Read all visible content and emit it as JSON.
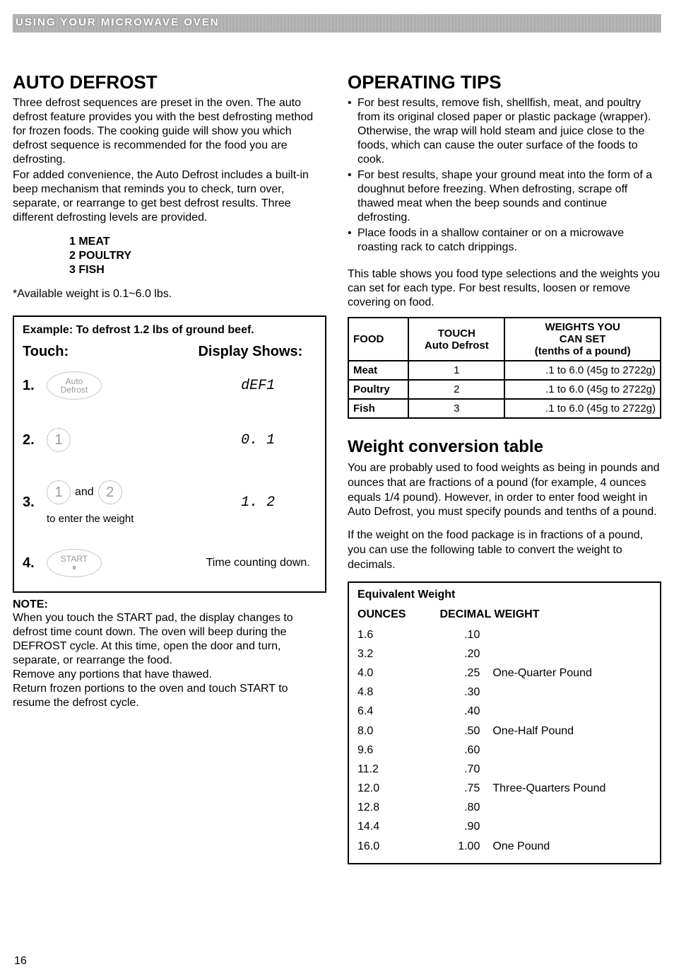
{
  "banner": "USING YOUR MICROWAVE OVEN",
  "left": {
    "h": "AUTO DEFROST",
    "p1": "Three defrost sequences are preset in the oven. The auto defrost feature provides you with the best defrosting method for frozen foods. The cooking guide will show you which defrost sequence is recommended for the food you are defrosting.",
    "p2": "For added convenience, the Auto Defrost includes a built-in beep mechanism that reminds you to check, turn over, separate, or rearrange to get best defrost results. Three different defrosting levels are provided.",
    "levels": [
      "1 MEAT",
      "2 POULTRY",
      "3 FISH"
    ],
    "avail": "*Available weight is 0.1~6.0 lbs.",
    "ex_title": "Example: To defrost 1.2 lbs of ground beef.",
    "ex_touch": "Touch:",
    "ex_disp": "Display Shows:",
    "steps": [
      {
        "n": "1.",
        "icon": "auto-defrost",
        "disp": "dEF1"
      },
      {
        "n": "2.",
        "icon": "key-1",
        "disp": "0. 1"
      },
      {
        "n": "3.",
        "icon": "key-1-2",
        "disp": "1. 2",
        "sub": "to enter the weight"
      },
      {
        "n": "4.",
        "icon": "start",
        "disp": "Time counting down."
      }
    ],
    "and": "and",
    "note_h": "NOTE:",
    "note": "When you touch the START pad, the display changes to defrost time count down. The oven will beep during the DEFROST cycle. At this time, open the door and turn, separate, or rearrange the food.\nRemove any portions that have thawed.\nReturn frozen portions to the oven and touch START to resume the defrost cycle."
  },
  "right": {
    "h1": "OPERATING TIPS",
    "tips": [
      "For best results, remove fish, shellfish, meat, and poultry from its original closed paper or plastic package (wrapper). Otherwise, the wrap will hold steam and juice close to the foods, which can cause the outer surface of the foods to cook.",
      "For best results, shape your ground meat into the form of a doughnut before freezing. When defrosting, scrape off thawed meat when the beep sounds and continue defrosting.",
      "Place foods in a shallow container or on a microwave roasting rack to catch drippings."
    ],
    "table_intro": "This table shows you food type selections and the weights you can set for each type. For best results, loosen or remove covering on food.",
    "food_head": [
      "FOOD",
      "TOUCH Auto Defrost",
      "WEIGHTS YOU CAN SET (tenths of a pound)"
    ],
    "food_rows": [
      [
        "Meat",
        "1",
        ".1 to 6.0 (45g to 2722g)"
      ],
      [
        "Poultry",
        "2",
        ".1 to 6.0 (45g to 2722g)"
      ],
      [
        "Fish",
        "3",
        ".1 to 6.0 (45g to 2722g)"
      ]
    ],
    "h2": "Weight conversion table",
    "wc_p1": "You are probably used to food weights as being in pounds and ounces that are fractions of a pound (for example, 4 ounces equals 1/4 pound). However, in order to enter food weight in Auto Defrost, you must specify pounds and tenths of a pound.",
    "wc_p2": "If the weight on the food package is in fractions of a pound, you can use the following table to convert the weight to decimals.",
    "eq_title": "Equivalent Weight",
    "eq_head": [
      "OUNCES",
      "DECIMAL WEIGHT"
    ],
    "eq_rows": [
      [
        "1.6",
        ".10",
        ""
      ],
      [
        "3.2",
        ".20",
        ""
      ],
      [
        "4.0",
        ".25",
        "One-Quarter Pound"
      ],
      [
        "4.8",
        ".30",
        ""
      ],
      [
        "6.4",
        ".40",
        ""
      ],
      [
        "8.0",
        ".50",
        "One-Half Pound"
      ],
      [
        "9.6",
        ".60",
        ""
      ],
      [
        "11.2",
        ".70",
        ""
      ],
      [
        "12.0",
        ".75",
        "Three-Quarters Pound"
      ],
      [
        "12.8",
        ".80",
        ""
      ],
      [
        "14.4",
        ".90",
        ""
      ],
      [
        "16.0",
        "1.00",
        "One Pound"
      ]
    ]
  },
  "page": "16",
  "icons": {
    "auto_defrost_l1": "Auto",
    "auto_defrost_l2": "Defrost",
    "start_l1": "START",
    "start_l2": "⏸"
  }
}
